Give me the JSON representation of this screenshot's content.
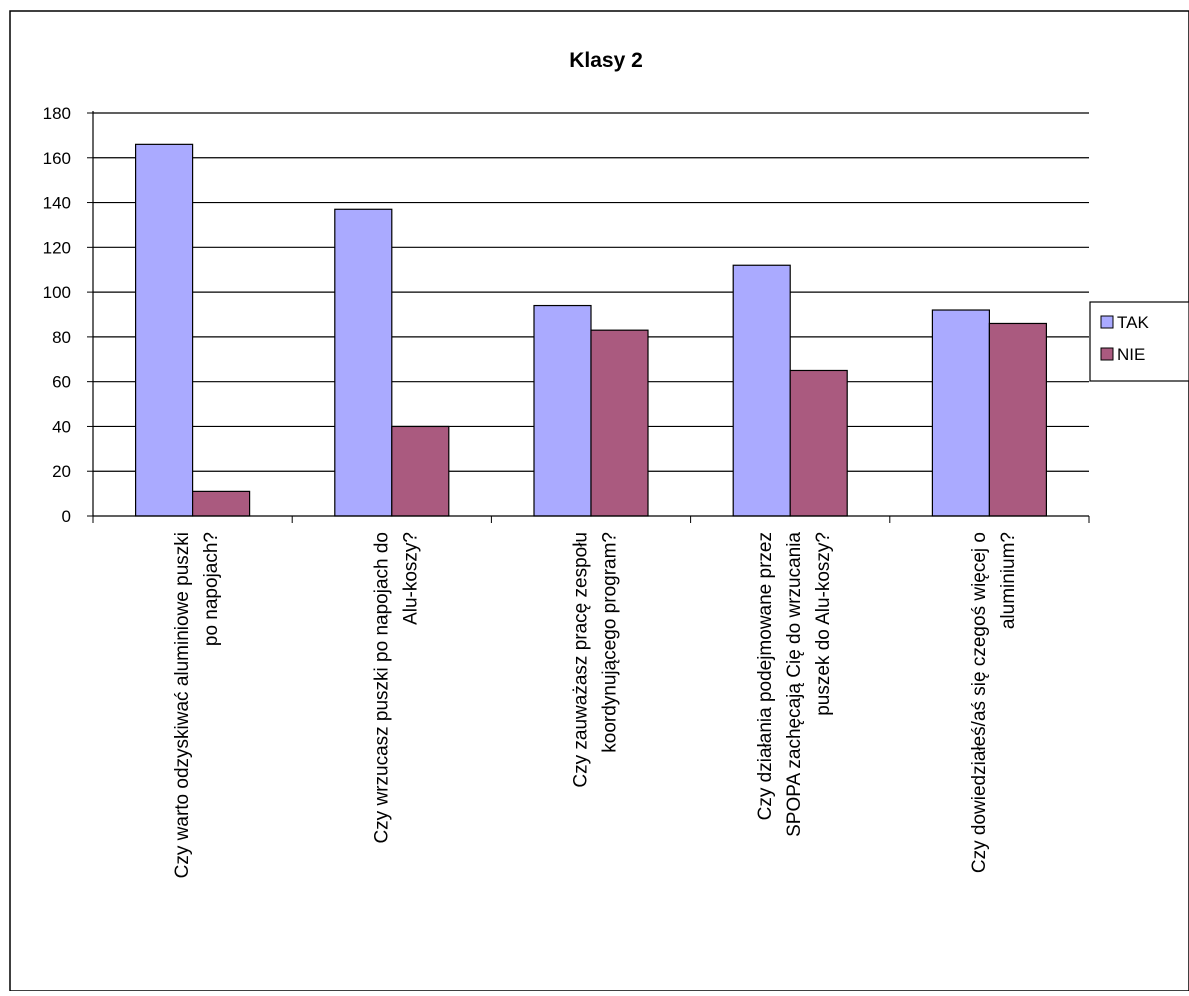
{
  "chart_data": {
    "type": "bar",
    "title": "Klasy 2",
    "xlabel": "",
    "ylabel": "",
    "ylim": [
      0,
      180
    ],
    "yticks": [
      0,
      20,
      40,
      60,
      80,
      100,
      120,
      140,
      160,
      180
    ],
    "grid": true,
    "legend_position": "right",
    "categories": [
      "Czy warto odzyskiwać aluminiowe puszki po napojach?",
      "Czy wrzucasz puszki po napojach do Alu-koszy?",
      "Czy zauważasz pracę zespołu koordynującego program?",
      "Czy działania podejmowane przez SPOPA zachęcają Cię do wrzucania puszek do Alu-koszy?",
      "Czy dowiedziałeś/aś się czegoś więcej o aluminium?"
    ],
    "category_lines": [
      [
        "Czy warto odzyskiwać aluminiowe puszki",
        "po napojach?"
      ],
      [
        "Czy wrzucasz puszki po napojach do",
        "Alu-koszy?"
      ],
      [
        "Czy zauważasz pracę zespołu",
        "koordynującego program?"
      ],
      [
        "Czy działania podejmowane przez",
        "SPOPA zachęcają Cię do wrzucania",
        "puszek do Alu-koszy?"
      ],
      [
        "Czy dowiedziałeś/aś się czegoś więcej o",
        "aluminium?"
      ]
    ],
    "series": [
      {
        "name": "TAK",
        "color": "#aaaaff",
        "values": [
          166,
          137,
          94,
          112,
          92
        ]
      },
      {
        "name": "NIE",
        "color": "#aa5a7f",
        "values": [
          11,
          40,
          83,
          65,
          86
        ]
      }
    ]
  }
}
